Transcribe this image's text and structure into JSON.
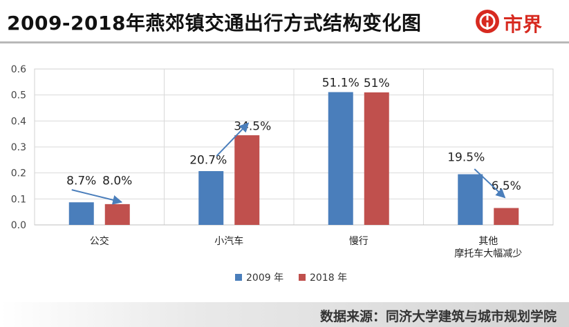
{
  "header": {
    "title": "2009-2018年燕郊镇交通出行方式结构变化图",
    "logo_text": "市界"
  },
  "footer": {
    "source": "数据来源：同济大学建筑与城市规划学院"
  },
  "colors": {
    "series_2009": "#4a7ebb",
    "series_2018": "#c0504d",
    "arrow": "#4a7ebb",
    "logo": "#d72a20"
  },
  "chart_data": {
    "type": "bar",
    "title": "",
    "xlabel": "",
    "ylabel": "",
    "ylim": [
      0,
      0.6
    ],
    "yticks": [
      "0.0",
      "0.1",
      "0.2",
      "0.3",
      "0.4",
      "0.5",
      "0.6"
    ],
    "grid": true,
    "legend": "bottom",
    "categories": [
      [
        "公交"
      ],
      [
        "小汽车"
      ],
      [
        "慢行"
      ],
      [
        "其他",
        "摩托车大幅减少"
      ]
    ],
    "series": [
      {
        "name": "2009 年",
        "values": [
          0.087,
          0.207,
          0.511,
          0.195
        ],
        "labels": [
          "8.7%",
          "20.7%",
          "51.1%",
          "19.5%"
        ]
      },
      {
        "name": "2018 年",
        "values": [
          0.08,
          0.345,
          0.51,
          0.065
        ],
        "labels": [
          "8.0%",
          "34.5%",
          "51%",
          "6.5%"
        ]
      }
    ],
    "annotations": [
      {
        "type": "arrow",
        "category": 0,
        "from_series": 0,
        "to_series": 1
      },
      {
        "type": "arrow",
        "category": 1,
        "from_series": 0,
        "to_series": 1
      },
      {
        "type": "arrow",
        "category": 3,
        "from_series": 0,
        "to_series": 1
      }
    ]
  }
}
